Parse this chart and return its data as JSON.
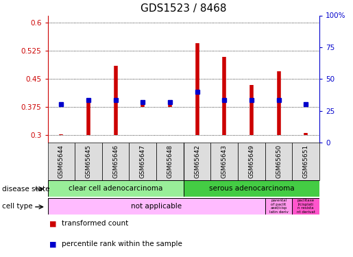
{
  "title": "GDS1523 / 8468",
  "samples": [
    "GSM65644",
    "GSM65645",
    "GSM65646",
    "GSM65647",
    "GSM65648",
    "GSM65642",
    "GSM65643",
    "GSM65649",
    "GSM65650",
    "GSM65651"
  ],
  "bar_bottoms": [
    0.3,
    0.3,
    0.3,
    0.375,
    0.375,
    0.3,
    0.3,
    0.3,
    0.3,
    0.3
  ],
  "bar_tops": [
    0.302,
    0.395,
    0.485,
    0.383,
    0.383,
    0.545,
    0.51,
    0.435,
    0.47,
    0.305
  ],
  "percentile_values": [
    0.383,
    0.393,
    0.393,
    0.388,
    0.388,
    0.415,
    0.393,
    0.393,
    0.393,
    0.383
  ],
  "ylim_left": [
    0.28,
    0.62
  ],
  "ylim_right": [
    0,
    100
  ],
  "yticks_left": [
    0.3,
    0.375,
    0.45,
    0.525,
    0.6
  ],
  "yticks_left_labels": [
    "0.3",
    "0.375",
    "0.45",
    "0.525",
    "0.6"
  ],
  "yticks_right": [
    0,
    25,
    50,
    75,
    100
  ],
  "yticks_right_labels": [
    "0",
    "25",
    "50",
    "75",
    "100%"
  ],
  "bar_color": "#cc0000",
  "percentile_color": "#0000cc",
  "disease_state_groups": [
    {
      "label": "clear cell adenocarcinoma",
      "start": 0,
      "end": 5,
      "color": "#99ee99"
    },
    {
      "label": "serous adenocarcinoma",
      "start": 5,
      "end": 10,
      "color": "#44cc44"
    }
  ],
  "legend_items": [
    {
      "label": "transformed count",
      "color": "#cc0000"
    },
    {
      "label": "percentile rank within the sample",
      "color": "#0000cc"
    }
  ],
  "axis_left_color": "#cc0000",
  "axis_right_color": "#0000cc",
  "title_fontsize": 11,
  "tick_fontsize": 7.5,
  "sample_label_fontsize": 6.5
}
